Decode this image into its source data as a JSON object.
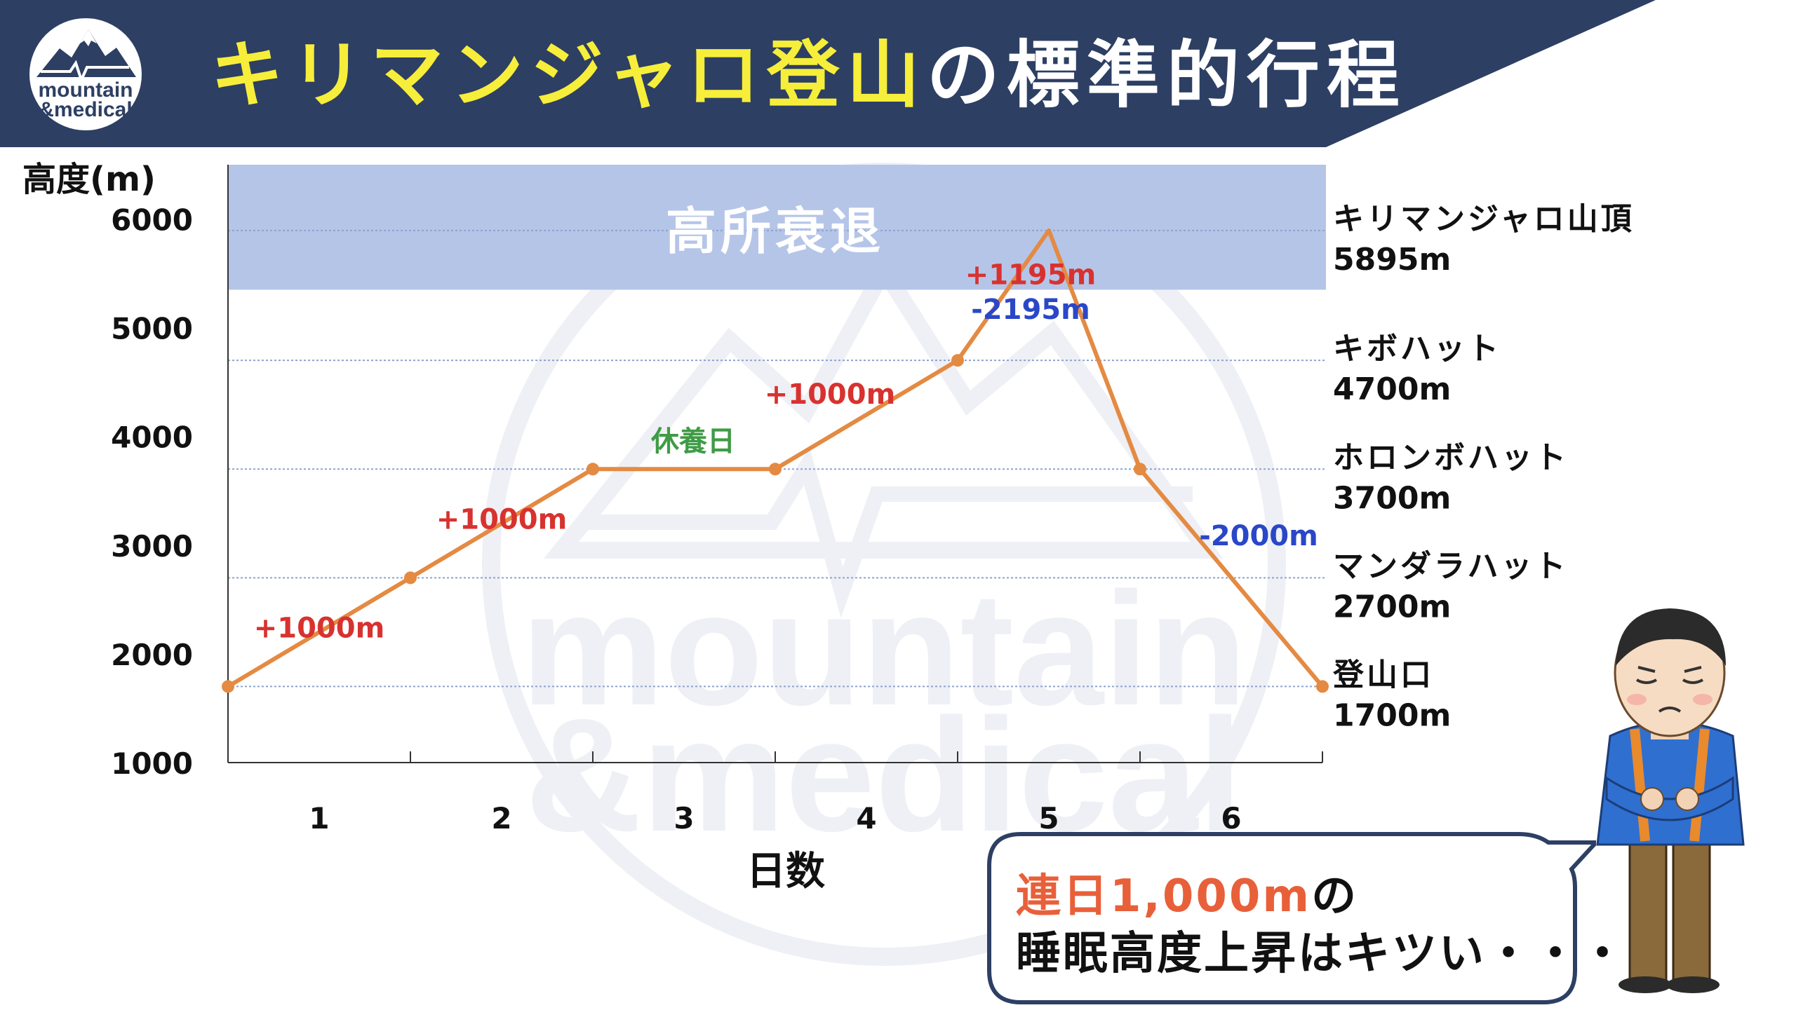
{
  "title": {
    "highlight": "キリマンジャロ登山",
    "rest": "の標準的行程"
  },
  "logo": {
    "line1": "mountain",
    "line2": "&medical"
  },
  "watermark": {
    "line1": "mountain",
    "line2": "&medical"
  },
  "chart_data": {
    "type": "line",
    "ylabel": "高度(m)",
    "xlabel": "日数",
    "ylim": [
      1000,
      6500
    ],
    "yticks": [
      1000,
      2000,
      3000,
      4000,
      5000,
      6000
    ],
    "xticks": [
      "1",
      "2",
      "3",
      "4",
      "5",
      "6"
    ],
    "zone": {
      "label": "高所衰退",
      "from": 5350,
      "to": 6500
    },
    "series": [
      {
        "x": [
          0,
          1,
          2,
          3,
          4,
          4.5,
          5,
          6
        ],
        "values": [
          1700,
          2700,
          3700,
          3700,
          4700,
          5895,
          3700,
          1700
        ]
      }
    ],
    "reference_lines": [
      {
        "name": "キリマンジャロ山頂",
        "value": "5895m",
        "y": 5895
      },
      {
        "name": "キボハット",
        "value": "4700m",
        "y": 4700
      },
      {
        "name": "ホロンボハット",
        "value": "3700m",
        "y": 3700
      },
      {
        "name": "マンダラハット",
        "value": "2700m",
        "y": 2700
      },
      {
        "name": "登山口",
        "value": "1700m",
        "y": 1700
      }
    ],
    "segment_labels": [
      {
        "text": "+1000m",
        "color": "#d8322f"
      },
      {
        "text": "+1000m",
        "color": "#d8322f"
      },
      {
        "text": "休養日",
        "color": "#3f9b46"
      },
      {
        "text": "+1000m",
        "color": "#d8322f"
      },
      {
        "text": "+1195m",
        "color": "#d8322f"
      },
      {
        "text": "-2195m",
        "color": "#2a47c8"
      },
      {
        "text": "-2000m",
        "color": "#2a47c8"
      }
    ]
  },
  "bubble": {
    "highlight": "連日1,000m",
    "line1_rest": "の",
    "line2": "睡眠高度上昇はキツい・・・"
  },
  "colors": {
    "header": "#2d3f63",
    "line": "#e48a42",
    "zone": "#b5c5e8",
    "ref_line": "#8ea3cf"
  }
}
